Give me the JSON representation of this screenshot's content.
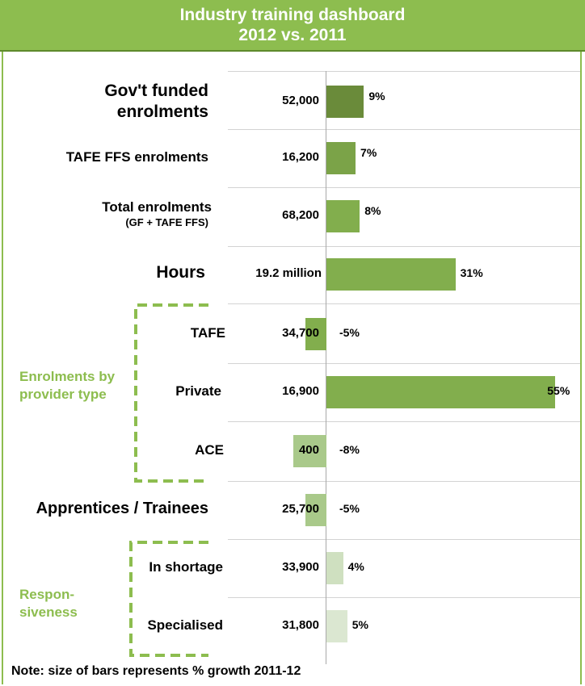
{
  "header": {
    "title_line1": "Industry training dashboard",
    "title_line2": "2012 vs. 2011"
  },
  "colors": {
    "accent": "#8dbd4f",
    "bar_dark": "#6a8b3a",
    "bar_mid": "#7ba348",
    "bar_green": "#82ae4d",
    "bar_light": "#a9c98a",
    "bar_pale": "#cfe0c0",
    "bar_palest": "#dbe7d1"
  },
  "groups": {
    "provider": "Enrolments by provider type",
    "responsiveness": "Respon-siveness"
  },
  "note": "Note: size of bars represents % growth 2011-12",
  "chart_data": {
    "type": "bar",
    "orientation": "horizontal",
    "categories": [
      "Gov't funded enrolments",
      "TAFE FFS enrolments",
      "Total enrolments (GF + TAFE FFS)",
      "Hours",
      "TAFE",
      "Private",
      "ACE",
      "Apprentices / Trainees",
      "In shortage",
      "Specialised"
    ],
    "sublabels": {
      "Total enrolments (GF + TAFE FFS)": "(GF + TAFE FFS)"
    },
    "counts": [
      "52,000",
      "16,200",
      "68,200",
      "19.2 million",
      "34,700",
      "16,900",
      "400",
      "25,700",
      "33,900",
      "31,800"
    ],
    "values": [
      9,
      7,
      8,
      31,
      -5,
      55,
      -8,
      -5,
      4,
      5
    ],
    "value_labels": [
      "9%",
      "7%",
      "8%",
      "31%",
      "-5%",
      "55%",
      "-8%",
      "-5%",
      "4%",
      "5%"
    ],
    "value_unit": "% growth 2011-12",
    "title": "Industry training dashboard 2012 vs. 2011"
  }
}
